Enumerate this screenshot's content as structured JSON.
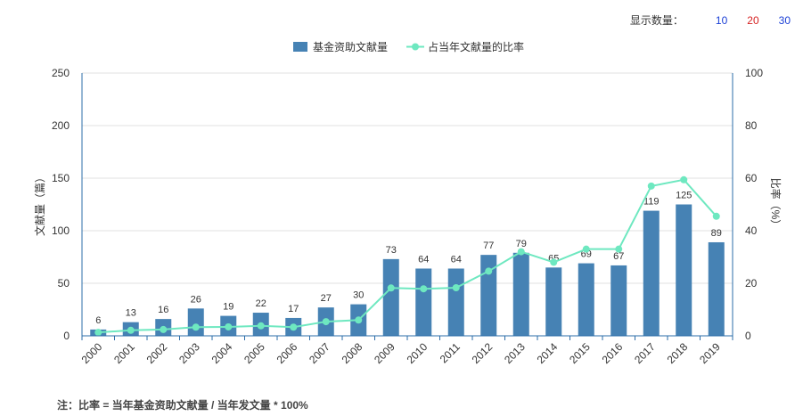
{
  "controls": {
    "show_count_label": "显示数量：",
    "options": [
      "10",
      "20",
      "30"
    ]
  },
  "note": "注：比率 = 当年基金资助文献量 / 当年发文量 * 100%",
  "chart_data": {
    "type": "bar",
    "categories": [
      "2000",
      "2001",
      "2002",
      "2003",
      "2004",
      "2005",
      "2006",
      "2007",
      "2008",
      "2009",
      "2010",
      "2011",
      "2012",
      "2013",
      "2014",
      "2015",
      "2016",
      "2017",
      "2018",
      "2019"
    ],
    "series": [
      {
        "name": "基金资助文献量",
        "type": "bar",
        "axis": "left",
        "color": "#4682b4",
        "values": [
          6,
          13,
          16,
          26,
          19,
          22,
          17,
          27,
          30,
          73,
          64,
          64,
          77,
          79,
          65,
          69,
          67,
          119,
          125,
          89
        ]
      },
      {
        "name": "占当年文献量的比率",
        "type": "line",
        "axis": "right",
        "color": "#6ee8c0",
        "values": [
          1.3,
          2.1,
          2.4,
          3.3,
          3.4,
          3.8,
          3.3,
          5.4,
          6.0,
          18.2,
          17.9,
          18.3,
          24.6,
          32.0,
          28.0,
          33.0,
          33.0,
          57.0,
          59.4,
          45.5
        ]
      }
    ],
    "ylabel": "文献量（篇）",
    "ylim": [
      0,
      250
    ],
    "yticks": [
      0,
      50,
      100,
      150,
      200,
      250
    ],
    "y2label": "比率（%）",
    "y2lim": [
      0,
      100
    ],
    "y2ticks": [
      0,
      20,
      40,
      60,
      80,
      100
    ],
    "grid": true,
    "legend": "top-center"
  }
}
